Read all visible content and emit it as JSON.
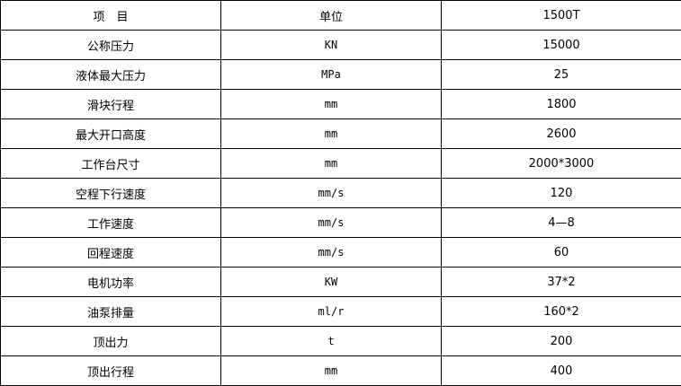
{
  "table": {
    "header": [
      "项　目",
      "单位",
      "1500T"
    ],
    "rows": [
      [
        "公称压力",
        "KN",
        "15000"
      ],
      [
        "液体最大压力",
        "MPa",
        "25"
      ],
      [
        "滑块行程",
        "mm",
        "1800"
      ],
      [
        "最大开口高度",
        "mm",
        "2600"
      ],
      [
        "工作台尺寸",
        "mm",
        "2000*3000"
      ],
      [
        "空程下行速度",
        "mm/s",
        "120"
      ],
      [
        "工作速度",
        "mm/s",
        "4—8"
      ],
      [
        "回程速度",
        "mm/s",
        "60"
      ],
      [
        "电机功率",
        "KW",
        "37*2"
      ],
      [
        "油泵排量",
        "ml/r",
        "160*2"
      ],
      [
        "顶出力",
        "t",
        "200"
      ],
      [
        "顶出行程",
        "mm",
        "400"
      ]
    ]
  }
}
